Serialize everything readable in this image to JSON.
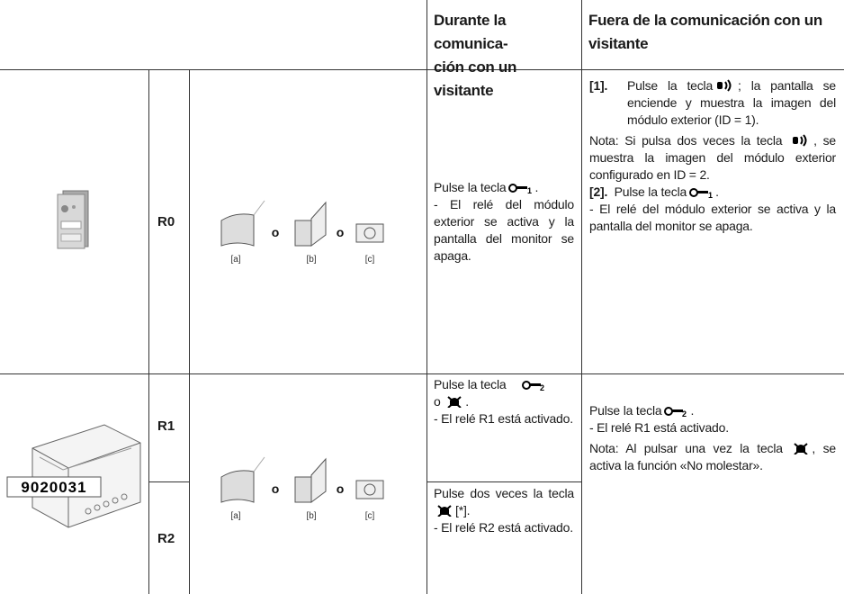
{
  "table": {
    "headers": [
      [
        "Durante la comunica-",
        "ción con un visitante"
      ],
      [
        "Fuera de la comunicación con un visitante"
      ]
    ],
    "rows": [
      {
        "relay": "R0",
        "options": [
          "[a]",
          "o",
          "[b]",
          "o",
          "[c]"
        ],
        "during": [
          "Pulse la tecla",
          ".",
          "- El relé del módulo exterior se activa y la pantalla del monitor se apaga."
        ],
        "outside": {
          "step1": [
            "[1].",
            "Pulse la tecla",
            "; la pantalla se enciende y muestra la imagen del módulo exterior (ID = 1)."
          ],
          "note": [
            "Nota: Si pulsa dos veces la tecla",
            ", se muestra la imagen del módulo exterior configurado en ID = 2."
          ],
          "step2": [
            "[2].",
            "Pulse la tecla",
            "."
          ],
          "result": "- El relé del módulo exterior se activa y la pantalla del monitor se apaga."
        }
      },
      {
        "device": "9020031",
        "relays": [
          "R1",
          "R2"
        ],
        "options": [
          "[a]",
          "o",
          "[b]",
          "o",
          "[c]"
        ],
        "during": [
          [
            "Pulse la tecla",
            "o",
            ".",
            "- El relé R1 está activado."
          ],
          [
            "Pulse dos veces la tecla",
            "[*].",
            "- El relé R2 está activado."
          ]
        ],
        "outside": [
          "Pulse la tecla",
          ".",
          "- El relé R1 está activado.",
          "Nota: Al pulsar una vez la tecla",
          ", se activa la función «No molestar»."
        ]
      }
    ]
  }
}
